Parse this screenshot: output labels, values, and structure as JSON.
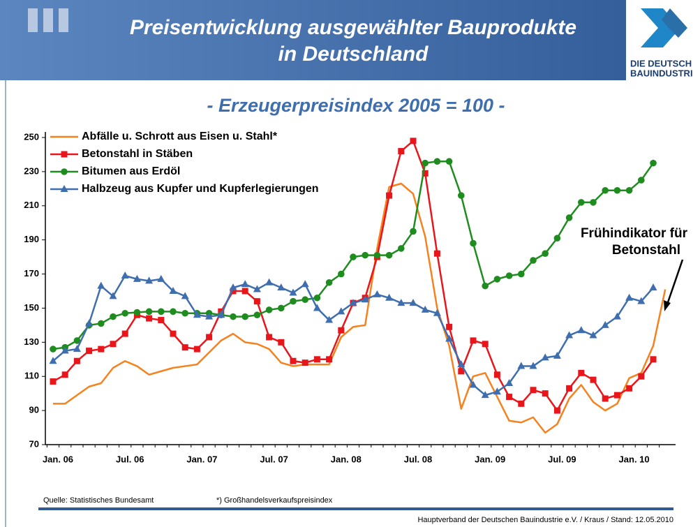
{
  "header": {
    "title": [
      "Preisentwicklung ausgewählter Bauprodukte",
      "in Deutschland"
    ],
    "logo": [
      "DIE DEUTSCH",
      "BAUINDUSTRI"
    ]
  },
  "chart_data": {
    "type": "line",
    "subtitle": "- Erzeugerpreisindex 2005 = 100 -",
    "categories": [
      "Jan. 06",
      null,
      null,
      null,
      null,
      null,
      "Jul. 06",
      null,
      null,
      null,
      null,
      null,
      "Jan. 07",
      null,
      null,
      null,
      null,
      null,
      "Jul. 07",
      null,
      null,
      null,
      null,
      null,
      "Jan. 08",
      null,
      null,
      null,
      null,
      null,
      "Jul. 08",
      null,
      null,
      null,
      null,
      null,
      "Jan. 09",
      null,
      null,
      null,
      null,
      null,
      "Jul. 09",
      null,
      null,
      null,
      null,
      null,
      "Jan. 10",
      null,
      null,
      null
    ],
    "series": [
      {
        "name": "Abfälle u. Schrott aus Eisen u. Stahl*",
        "color": "#f5821f",
        "marker": "none",
        "values": [
          94,
          94,
          99,
          104,
          106,
          115,
          119,
          116,
          111,
          113,
          115,
          116,
          117,
          124,
          131,
          135,
          130,
          129,
          126,
          118,
          116,
          117,
          117,
          117,
          133,
          139,
          140,
          185,
          221,
          223,
          217,
          192,
          150,
          128,
          91,
          110,
          112,
          98,
          84,
          83,
          86,
          77,
          82,
          97,
          105,
          95,
          90,
          94,
          109,
          112,
          128,
          161
        ]
      },
      {
        "name": "Betonstahl in Stäben",
        "color": "#e8161b",
        "marker": "square",
        "values": [
          107,
          111,
          119,
          125,
          126,
          129,
          135,
          146,
          144,
          143,
          135,
          127,
          126,
          133,
          148,
          160,
          160,
          154,
          133,
          130,
          119,
          118,
          120,
          120,
          137,
          153,
          156,
          180,
          216,
          242,
          248,
          229,
          182,
          139,
          113,
          131,
          129,
          111,
          98,
          94,
          102,
          100,
          90,
          103,
          112,
          108,
          97,
          99,
          103,
          110,
          120,
          null
        ]
      },
      {
        "name": "Bitumen aus Erdöl",
        "color": "#1e8c1e",
        "marker": "circle",
        "values": [
          126,
          127,
          131,
          140,
          141,
          145,
          147,
          147.5,
          148,
          148,
          148,
          147,
          147,
          147,
          146,
          145,
          145,
          146,
          149,
          150,
          154,
          155,
          156,
          165,
          170,
          180,
          181,
          181,
          181,
          185,
          195,
          235,
          236,
          236,
          216,
          188,
          163,
          167,
          169,
          170,
          178,
          182,
          191,
          203,
          212,
          212,
          219,
          219,
          219,
          225,
          235,
          null
        ]
      },
      {
        "name": "Halbzeug aus Kupfer und Kupferlegierungen",
        "color": "#3f6eaf",
        "marker": "triangle",
        "values": [
          119,
          125,
          126,
          141,
          163,
          157,
          169,
          167,
          166,
          167,
          160,
          157,
          146,
          145,
          146,
          162,
          164,
          161,
          165,
          162,
          159,
          164,
          150,
          143,
          148,
          153,
          155,
          158,
          156,
          153,
          153,
          149,
          147,
          132,
          117,
          105,
          99,
          101,
          106,
          116,
          116,
          121,
          122,
          134,
          137,
          134,
          140,
          145,
          156,
          154,
          162,
          null
        ]
      }
    ],
    "ylim": [
      70,
      250
    ],
    "yticks": [
      70,
      90,
      110,
      130,
      150,
      170,
      190,
      210,
      230,
      250
    ],
    "annotation": [
      "Frühindikator für",
      "Betonstahl"
    ]
  },
  "footer": {
    "source": "Quelle: Statistisches Bundesamt",
    "note": "*) Großhandelsverkaufspreisindex",
    "credit": "Hauptverband der Deutschen Bauindustrie e.V. / Kraus / Stand: 12.05.2010"
  }
}
